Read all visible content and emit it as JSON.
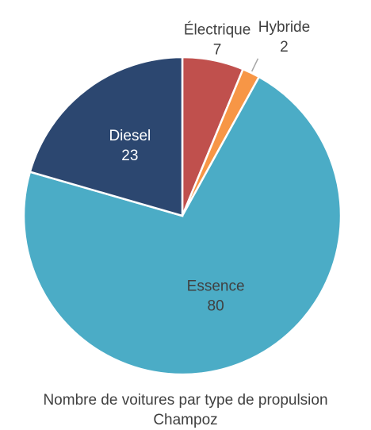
{
  "chart_data": {
    "type": "pie",
    "title": "Nombre de voitures par type de propulsion",
    "subtitle": "Champoz",
    "categories": [
      "Électrique",
      "Hybride",
      "Essence",
      "Diesel"
    ],
    "values": [
      7,
      2,
      80,
      23
    ],
    "colors": [
      "#c0504d",
      "#f79646",
      "#4bacc6",
      "#2c4770"
    ]
  }
}
